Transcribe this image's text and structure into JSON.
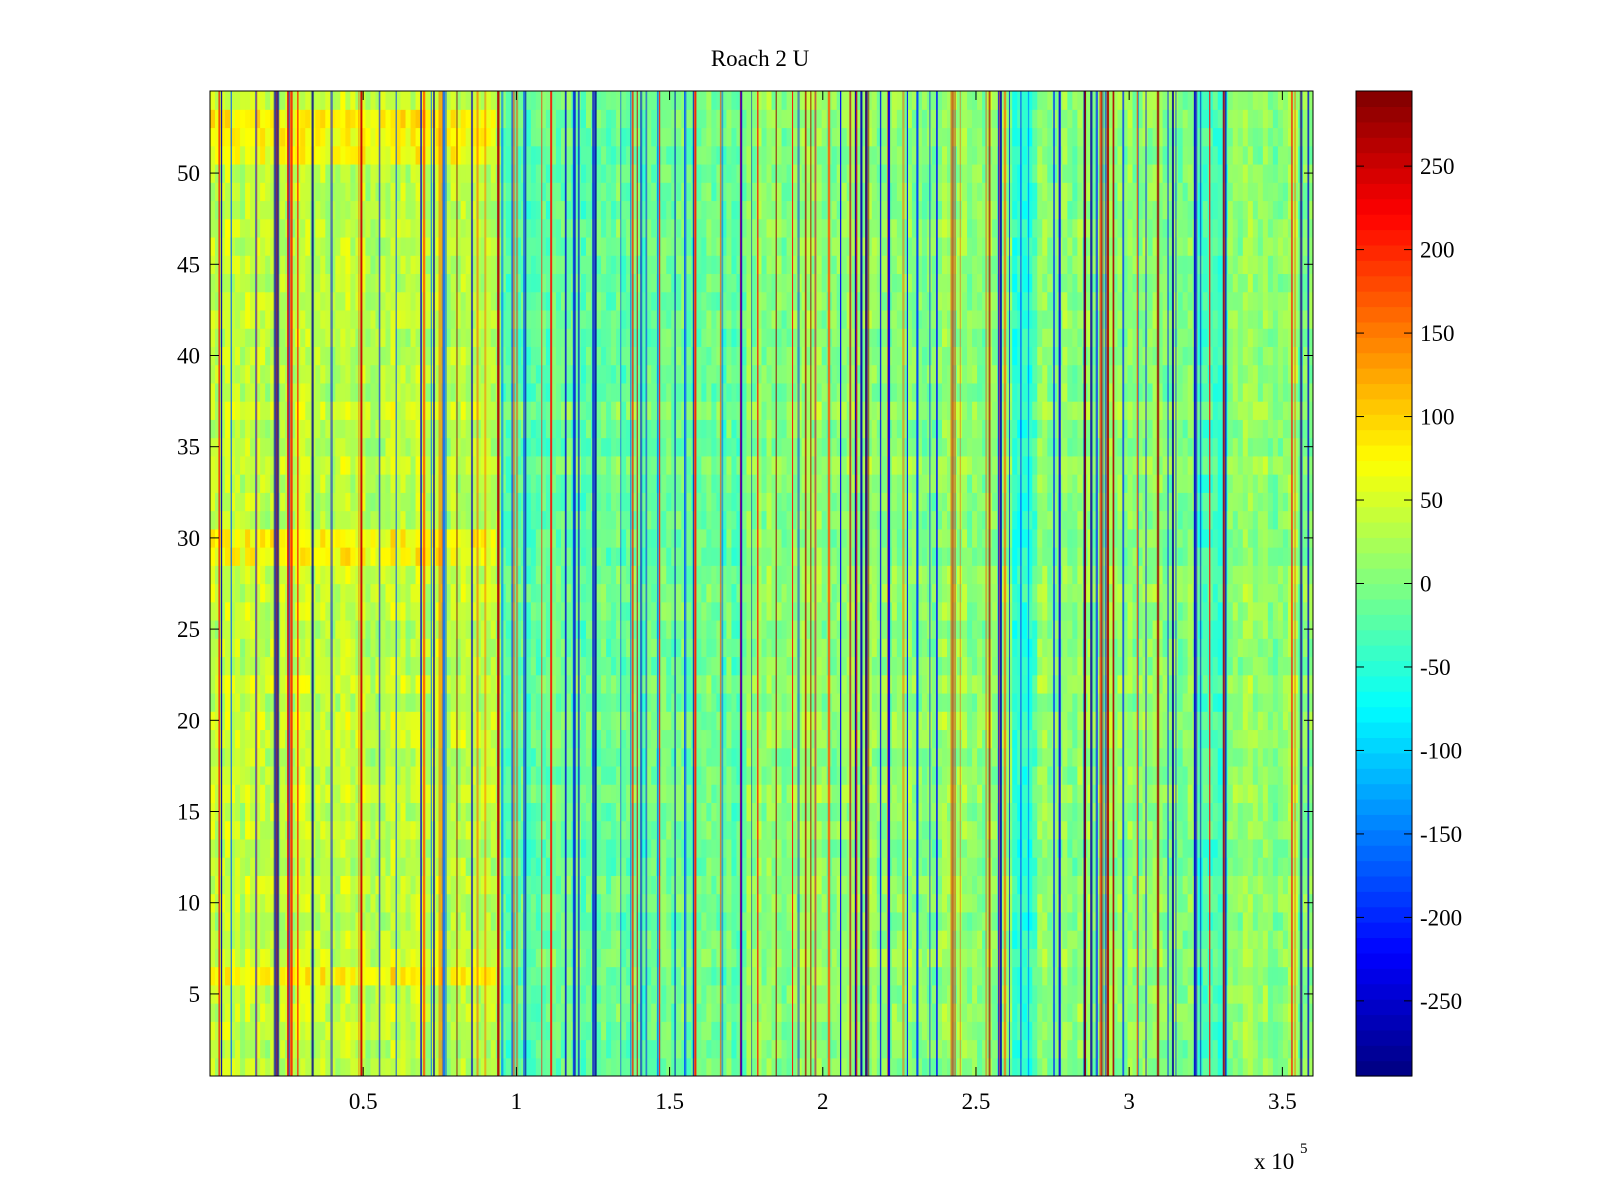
{
  "chart_data": {
    "type": "heatmap",
    "title": "Roach 2 U",
    "xlabel": "",
    "ylabel": "",
    "x_multiplier_label": {
      "base": "x 10",
      "exponent": "5"
    },
    "x_range": [
      0,
      360000
    ],
    "x_range_display": [
      0,
      3.6
    ],
    "y_range": [
      0.5,
      54.5
    ],
    "rows": 54,
    "x_ticks": [
      "0.5",
      "1",
      "1.5",
      "2",
      "2.5",
      "3",
      "3.5"
    ],
    "x_tick_values": [
      0.5,
      1,
      1.5,
      2,
      2.5,
      3,
      3.5
    ],
    "y_ticks": [
      "5",
      "10",
      "15",
      "20",
      "25",
      "30",
      "35",
      "40",
      "45",
      "50"
    ],
    "y_tick_values": [
      5,
      10,
      15,
      20,
      25,
      30,
      35,
      40,
      45,
      50
    ],
    "colormap": "jet",
    "color_range": [
      -295,
      295
    ],
    "colorbar_ticks": [
      "250",
      "200",
      "150",
      "100",
      "50",
      "0",
      "-50",
      "-100",
      "-150",
      "-200",
      "-250"
    ],
    "colorbar_tick_values": [
      250,
      200,
      150,
      100,
      50,
      0,
      -50,
      -100,
      -150,
      -200,
      -250
    ],
    "grid": false,
    "approx_features": {
      "warm_region_x": [
        0,
        0.93
      ],
      "warm_rows": [
        6,
        29,
        30,
        51,
        52,
        53
      ],
      "cool_region_x": [
        0.95,
        1.75
      ],
      "cool_bands_x": [
        [
          2.62,
          2.7
        ],
        [
          3.23,
          3.32
        ]
      ],
      "baseline_value": 10
    }
  }
}
